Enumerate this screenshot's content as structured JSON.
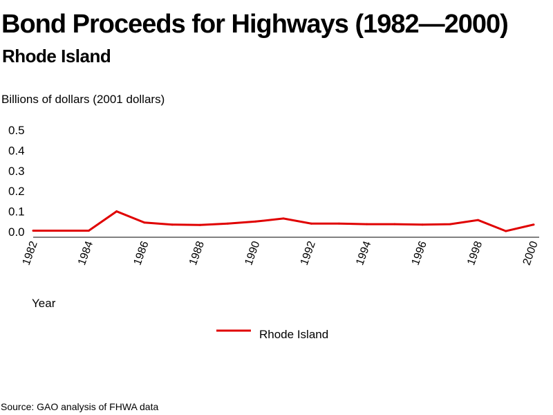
{
  "header": {
    "title": "Bond Proceeds for Highways (1982—2000)",
    "subtitle": "Rhode Island",
    "unit_label": "Billions of dollars (2001 dollars)"
  },
  "footer": {
    "source": "Source: GAO analysis of FHWA data"
  },
  "colors": {
    "series": "#e00000",
    "axis": "#000000"
  },
  "chart_data": {
    "type": "line",
    "title": "Bond Proceeds for Highways (1982—2000)",
    "subtitle": "Rhode Island",
    "xlabel": "Year",
    "ylabel": "Billions of dollars (2001 dollars)",
    "x": [
      1982,
      1983,
      1984,
      1985,
      1986,
      1987,
      1988,
      1989,
      1990,
      1991,
      1992,
      1993,
      1994,
      1995,
      1996,
      1997,
      1998,
      1999,
      2000
    ],
    "x_tick_labels": [
      "1982",
      "1984",
      "1986",
      "1988",
      "1990",
      "1992",
      "1994",
      "1996",
      "1998",
      "2000"
    ],
    "y_tick_labels": [
      "0.0",
      "0.1",
      "0.2",
      "0.3",
      "0.4",
      "0.5"
    ],
    "ylim": [
      0,
      0.5
    ],
    "xlim": [
      1982,
      2000
    ],
    "grid": false,
    "legend_placement": "bottom-center",
    "series": [
      {
        "name": "Rhode Island",
        "color": "#e00000",
        "values": [
          0.005,
          0.005,
          0.005,
          0.1,
          0.045,
          0.035,
          0.033,
          0.04,
          0.05,
          0.065,
          0.04,
          0.04,
          0.037,
          0.037,
          0.035,
          0.037,
          0.057,
          0.003,
          0.035
        ]
      }
    ]
  }
}
